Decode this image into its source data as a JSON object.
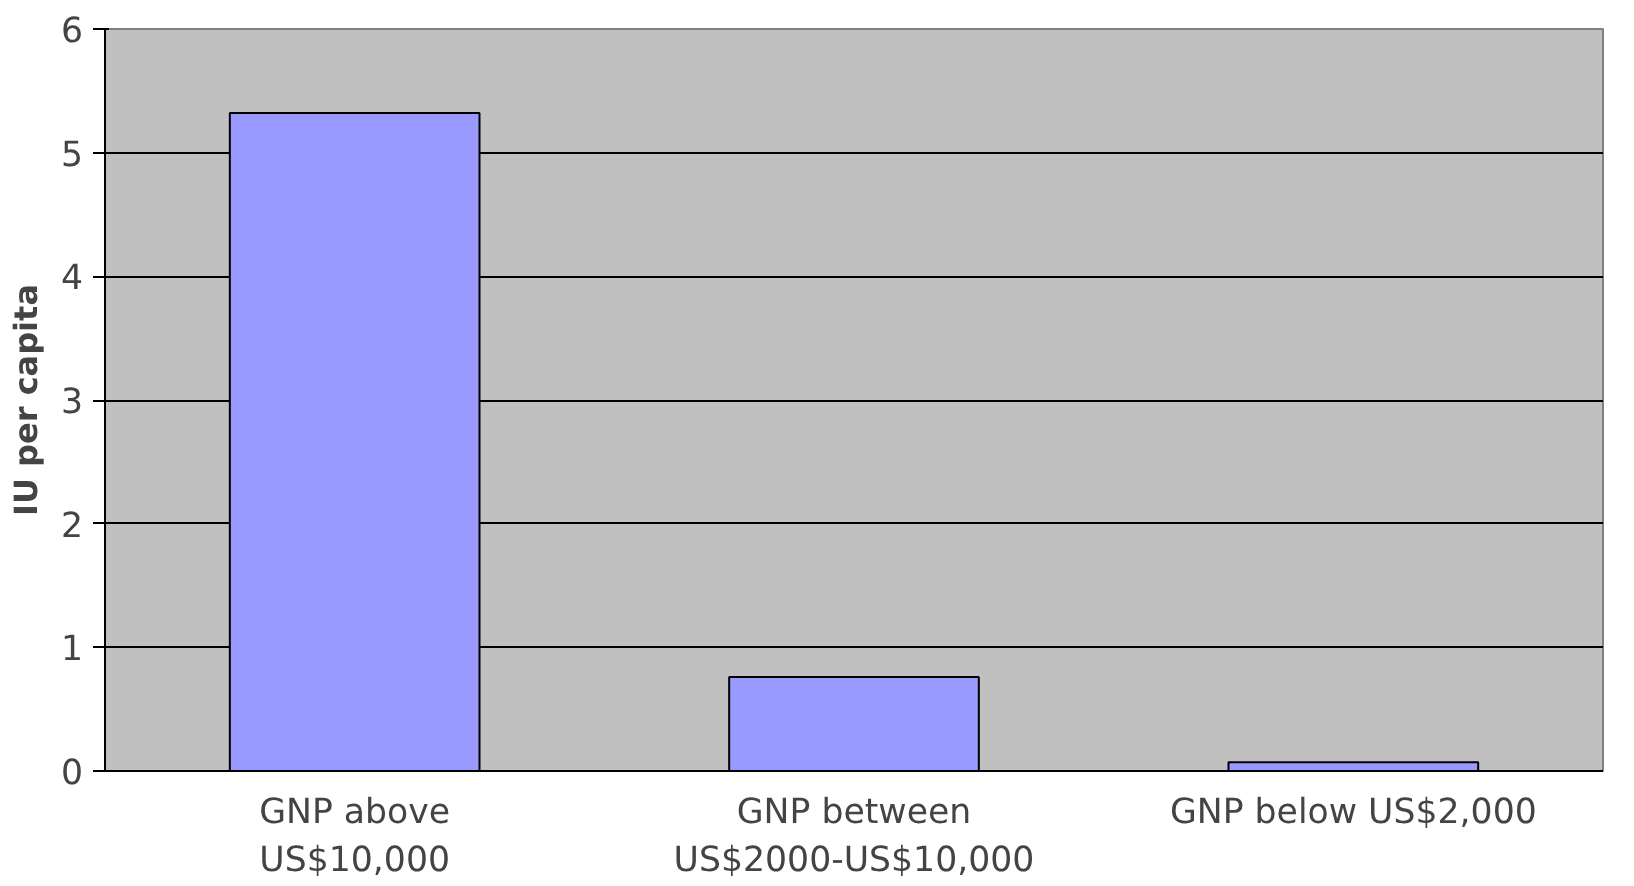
{
  "chart_data": {
    "type": "bar",
    "ylabel": "IU per capita",
    "categories": [
      "GNP above US$10,000",
      "GNP between US$2000-US$10,000",
      "GNP below US$2,000"
    ],
    "values": [
      5.32,
      0.76,
      0.07
    ],
    "color": "#9999ff",
    "ylim": [
      0,
      6
    ],
    "yticks": [
      0,
      1,
      2,
      3,
      4,
      5,
      6
    ],
    "grid": "y"
  }
}
